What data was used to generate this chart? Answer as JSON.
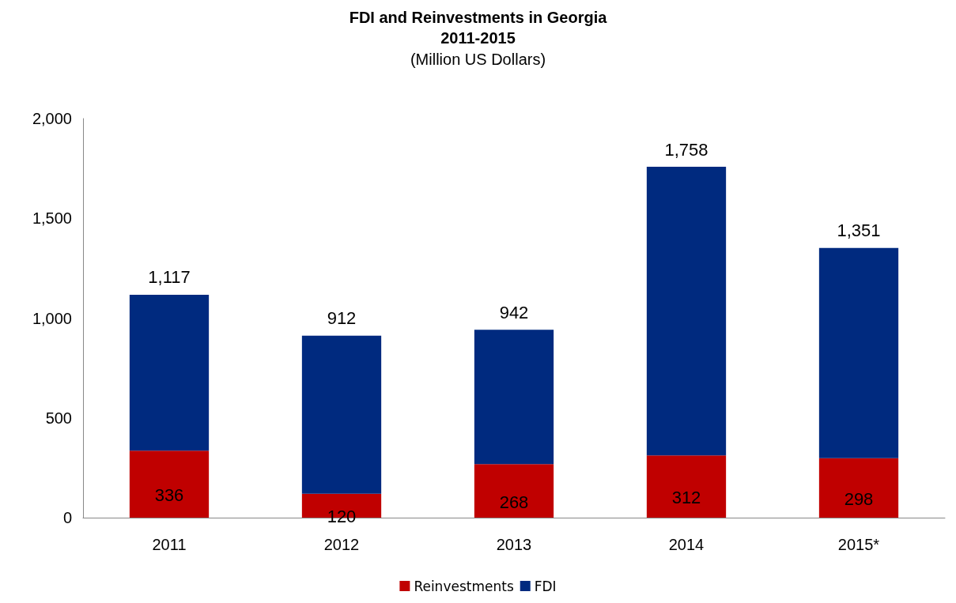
{
  "chart_data": {
    "type": "bar",
    "title": "FDI and Reinvestments in Georgia\n2011-2015",
    "subtitle": "(Million US Dollars)",
    "categories": [
      "2011",
      "2012",
      "2013",
      "2014",
      "2015*"
    ],
    "stacked": true,
    "series": [
      {
        "name": "Reinvestments",
        "color": "#c00000",
        "values": [
          336,
          120,
          268,
          312,
          298
        ],
        "value_labels": [
          "336",
          "120",
          "268",
          "312",
          "298"
        ]
      },
      {
        "name": "FDI",
        "color": "#002a7f",
        "values": [
          781,
          792,
          674,
          1446,
          1053
        ]
      }
    ],
    "totals": [
      "1,117",
      "912",
      "942",
      "1,758",
      "1,351"
    ],
    "ylim": [
      0,
      2000
    ],
    "yticks": [
      0,
      500,
      {
        "value": 1000,
        "label": "1,000"
      },
      {
        "value": 1500,
        "label": "1,500"
      },
      {
        "value": 2000,
        "label": "2,000"
      }
    ],
    "grid": false,
    "legend": "bottom"
  }
}
